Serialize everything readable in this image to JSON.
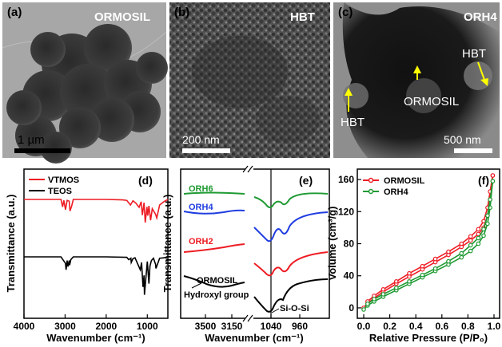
{
  "panels": {
    "a": {
      "tag": "(a)",
      "title": "ORMOSIL",
      "scale": "1 µm"
    },
    "b": {
      "tag": "(b)",
      "title": "HBT",
      "scale": "200 nm"
    },
    "c": {
      "tag": "(c)",
      "title": "ORH4",
      "scale": "500 nm",
      "annotations": [
        "HBT",
        "ORMOSIL",
        "HBT"
      ]
    },
    "d": {
      "tag": "(d)"
    },
    "e": {
      "tag": "(e)"
    },
    "f": {
      "tag": "(f)"
    }
  },
  "chart_data": [
    {
      "panel": "d",
      "type": "line",
      "xlabel": "Wavenumber (cm⁻¹)",
      "ylabel": "Transmittance (a.u.)",
      "xlim": [
        4000,
        500
      ],
      "xticks": [
        4000,
        3000,
        2000,
        1000
      ],
      "legend_position": "top-left",
      "series": [
        {
          "name": "VTMOS",
          "color": "#ee1c24",
          "x": [
            4000,
            3100,
            3060,
            3030,
            2990,
            2950,
            2900,
            2880,
            2840,
            2800,
            2000,
            1600,
            1500,
            1410,
            1350,
            1280,
            1200,
            1150,
            1120,
            1080,
            1050,
            1010,
            990,
            960,
            920,
            880,
            800,
            770,
            700,
            600,
            500
          ],
          "y": [
            1.0,
            1.0,
            0.84,
            0.98,
            0.78,
            0.98,
            0.96,
            0.75,
            0.86,
            1.0,
            1.0,
            0.99,
            0.98,
            0.88,
            0.97,
            0.92,
            0.83,
            0.95,
            0.66,
            0.93,
            0.5,
            0.84,
            0.65,
            0.86,
            0.55,
            0.8,
            0.68,
            0.6,
            0.88,
            0.95,
            1.0
          ]
        },
        {
          "name": "TEOS",
          "color": "#000000",
          "x": [
            4000,
            3100,
            2990,
            2975,
            2950,
            2930,
            2900,
            2890,
            2860,
            2800,
            2000,
            1500,
            1450,
            1400,
            1390,
            1350,
            1300,
            1170,
            1140,
            1105,
            1080,
            1070,
            1000,
            960,
            935,
            900,
            850,
            800,
            790,
            700,
            600,
            500
          ],
          "y": [
            1.0,
            1.0,
            0.86,
            0.72,
            0.92,
            0.79,
            0.92,
            0.82,
            0.94,
            1.0,
            1.0,
            0.99,
            0.94,
            0.97,
            0.88,
            0.96,
            0.98,
            0.72,
            0.88,
            0.35,
            0.6,
            0.18,
            0.9,
            0.42,
            0.8,
            0.92,
            0.97,
            0.84,
            0.75,
            0.97,
            0.98,
            1.0
          ]
        }
      ]
    },
    {
      "panel": "e",
      "type": "line",
      "xlabel": "Wavenumber (cm⁻¹)",
      "ylabel": "Transmittance (a.u.)",
      "broken_axis": true,
      "xticks_left": [
        3500,
        3150
      ],
      "xticks_right": [
        1040,
        960
      ],
      "annotations": [
        "Hydroxyl group",
        "Si-O-Si"
      ],
      "series": [
        {
          "name": "ORH6",
          "color": "#1e9a32"
        },
        {
          "name": "ORH4",
          "color": "#1f3de0"
        },
        {
          "name": "ORH2",
          "color": "#ee1c24"
        },
        {
          "name": "ORMOSIL",
          "color": "#000000"
        }
      ]
    },
    {
      "panel": "f",
      "type": "line",
      "xlabel": "Relative Pressure (P/P₀)",
      "ylabel": "Volume (cm³/g)",
      "xlim": [
        0.0,
        1.0
      ],
      "ylim": [
        -10,
        170
      ],
      "xticks": [
        0.0,
        0.2,
        0.4,
        0.6,
        0.8,
        1.0
      ],
      "yticks": [
        0,
        40,
        80,
        120,
        160
      ],
      "legend_position": "top-left",
      "series": [
        {
          "name": "ORMOSIL",
          "color": "#ee1c24",
          "adsorption_x": [
            0.0,
            0.03,
            0.08,
            0.15,
            0.25,
            0.35,
            0.45,
            0.55,
            0.65,
            0.75,
            0.82,
            0.88,
            0.92,
            0.95,
            0.97,
            0.99
          ],
          "adsorption_y": [
            0,
            6,
            12,
            20,
            30,
            39,
            48,
            57,
            66,
            76,
            84,
            92,
            100,
            115,
            135,
            165
          ],
          "desorption_x": [
            0.99,
            0.97,
            0.95,
            0.92,
            0.88,
            0.82,
            0.75,
            0.65,
            0.55,
            0.45,
            0.35,
            0.25,
            0.15,
            0.08,
            0.03
          ],
          "desorption_y": [
            165,
            145,
            125,
            108,
            98,
            89,
            80,
            70,
            61,
            52,
            43,
            33,
            23,
            15,
            8
          ]
        },
        {
          "name": "ORH4",
          "color": "#1e9a32",
          "adsorption_x": [
            0.0,
            0.03,
            0.08,
            0.15,
            0.25,
            0.35,
            0.45,
            0.55,
            0.65,
            0.75,
            0.82,
            0.88,
            0.92,
            0.95,
            0.97,
            0.99
          ],
          "adsorption_y": [
            -2,
            3,
            8,
            14,
            22,
            30,
            38,
            46,
            54,
            63,
            71,
            80,
            90,
            105,
            125,
            158
          ],
          "desorption_x": [
            0.99,
            0.97,
            0.95,
            0.92,
            0.88,
            0.82,
            0.75,
            0.65,
            0.55,
            0.45,
            0.35,
            0.25,
            0.15,
            0.08,
            0.03
          ],
          "desorption_y": [
            158,
            135,
            115,
            98,
            87,
            78,
            68,
            58,
            49,
            41,
            33,
            25,
            17,
            11,
            5
          ]
        }
      ]
    }
  ]
}
